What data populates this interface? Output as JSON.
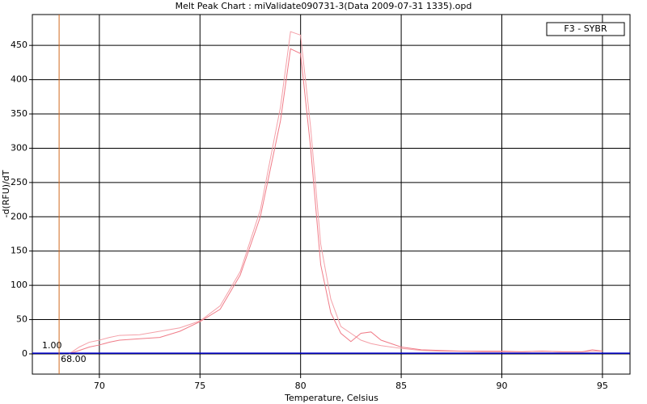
{
  "chart_data": {
    "type": "line",
    "title": "Melt Peak Chart : miValidate090731-3(Data 2009-07-31 1335).opd",
    "x_label": "Temperature, Celsius",
    "y_label": "-d(RFU)/dT",
    "legend": "F3 - SYBR",
    "x": [
      68.5,
      69,
      69.5,
      70,
      70.5,
      71,
      72,
      73,
      74,
      75,
      76,
      77,
      78,
      79,
      79.5,
      80,
      80.5,
      81,
      81.5,
      82,
      82.5,
      83,
      83.5,
      84,
      85,
      86,
      87,
      88,
      89,
      90,
      91,
      92,
      93,
      94,
      94.5,
      95
    ],
    "series": [
      {
        "color": "#f4a0a8",
        "values": [
          0,
          10,
          17,
          20,
          24,
          27,
          28,
          33,
          38,
          48,
          70,
          120,
          210,
          360,
          470,
          465,
          330,
          160,
          80,
          40,
          30,
          20,
          15,
          12,
          8,
          5,
          4,
          4,
          3,
          3,
          3,
          4,
          3,
          3,
          4,
          4
        ]
      },
      {
        "color": "#f07c88",
        "values": [
          0,
          5,
          10,
          13,
          17,
          20,
          22,
          24,
          33,
          47,
          65,
          115,
          200,
          340,
          445,
          438,
          300,
          130,
          60,
          30,
          18,
          30,
          32,
          20,
          10,
          6,
          5,
          4,
          4,
          4,
          3,
          4,
          3,
          3,
          6,
          4
        ]
      }
    ],
    "threshold": {
      "value": 1,
      "label": "1.00",
      "color": "#0000cc"
    },
    "marker_x": {
      "value": 68,
      "label": "68.00",
      "color": "#d2691e"
    },
    "xlim": [
      66.67,
      96.37
    ],
    "ylim": [
      -29.5,
      495
    ],
    "xticks": [
      70,
      75,
      80,
      85,
      90,
      95
    ],
    "yticks": [
      0,
      50,
      100,
      150,
      200,
      250,
      300,
      350,
      400,
      450
    ],
    "grid": true
  }
}
